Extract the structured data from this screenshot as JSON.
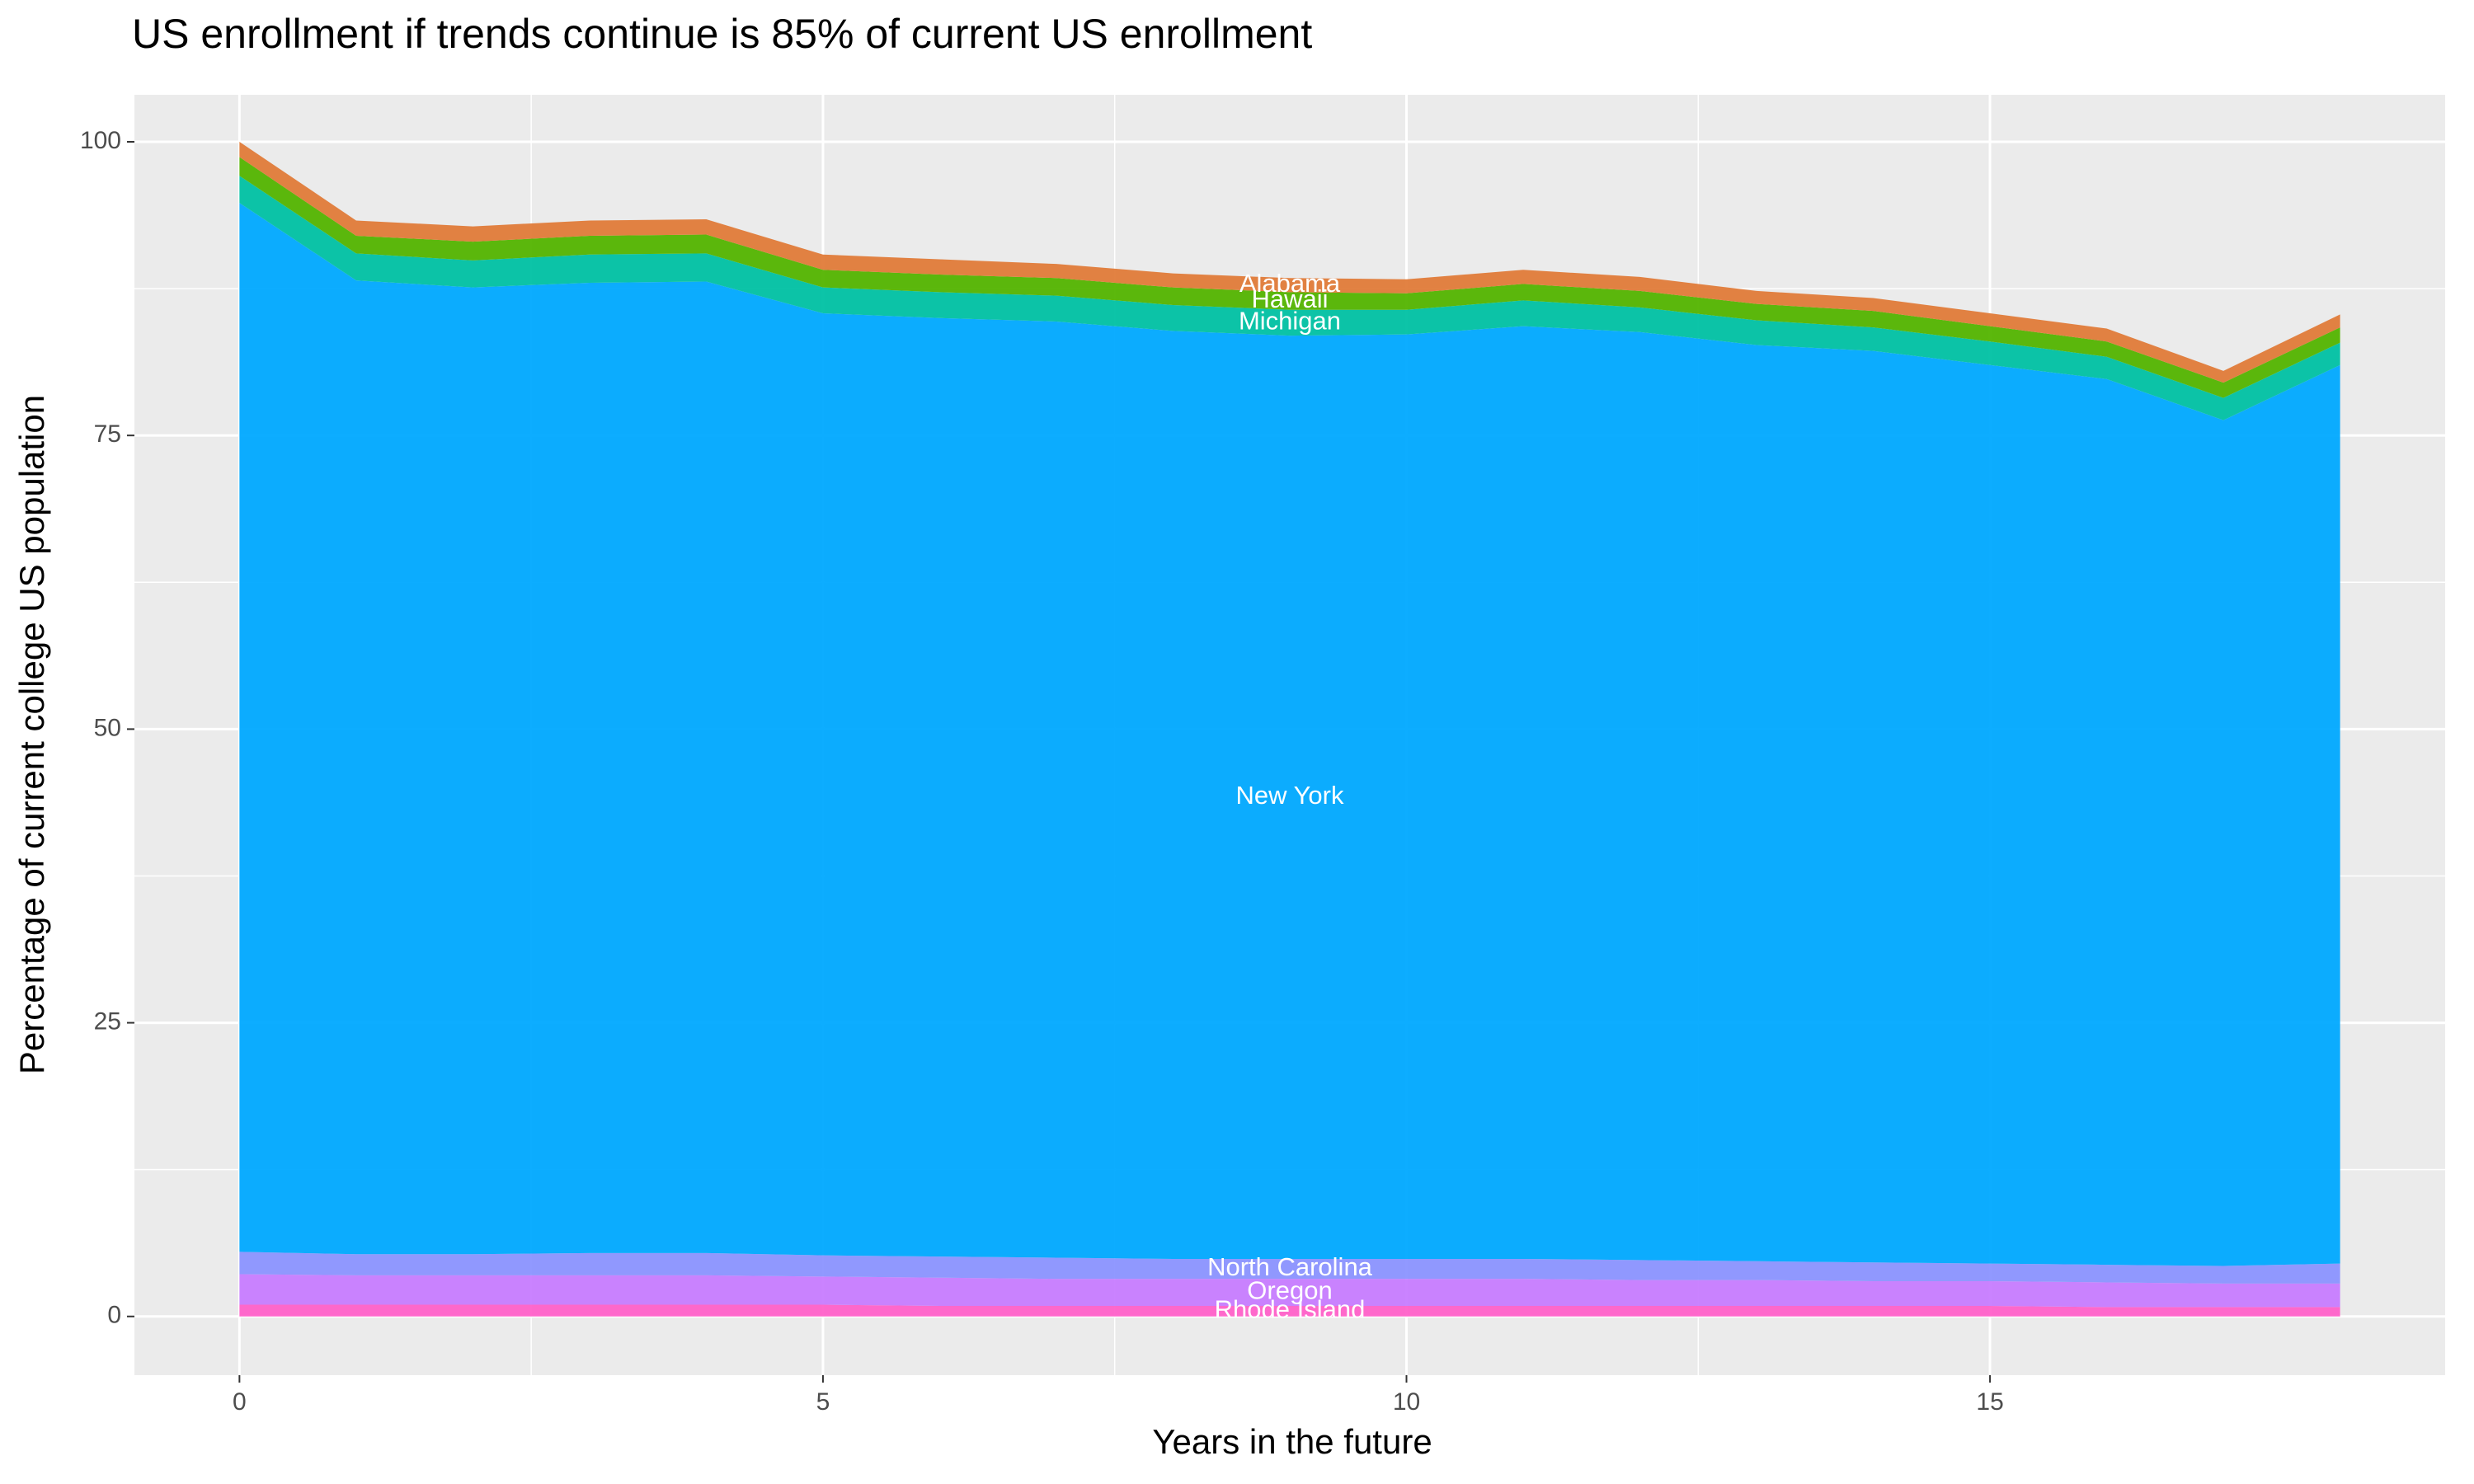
{
  "chart_data": {
    "type": "stacked-area",
    "title": "US enrollment if trends continue is 85% of current US enrollment",
    "x_label": "Years in the future",
    "y_label": "Percentage of current college US population",
    "x": [
      0,
      1,
      2,
      3,
      4,
      5,
      6,
      7,
      8,
      9,
      10,
      11,
      12,
      13,
      14,
      15,
      16,
      17,
      18
    ],
    "xlim": [
      -0.9,
      18.9
    ],
    "xticks": [
      0,
      5,
      10,
      15
    ],
    "ylim": [
      -5,
      104
    ],
    "yticks": [
      0,
      25,
      50,
      75,
      100
    ],
    "grid": true,
    "series": [
      {
        "name": "Rhode Island",
        "color": "#ff61c9",
        "values": [
          1.0,
          1.0,
          1.0,
          1.0,
          1.0,
          1.0,
          0.9,
          0.9,
          0.9,
          0.9,
          0.9,
          0.9,
          0.9,
          0.9,
          0.9,
          0.9,
          0.8,
          0.8,
          0.8
        ]
      },
      {
        "name": "Oregon",
        "color": "#c77cff",
        "values": [
          2.6,
          2.5,
          2.5,
          2.5,
          2.5,
          2.4,
          2.4,
          2.3,
          2.3,
          2.3,
          2.3,
          2.3,
          2.2,
          2.2,
          2.1,
          2.1,
          2.1,
          2.0,
          2.0
        ]
      },
      {
        "name": "North Carolina",
        "color": "#8b93ff",
        "values": [
          1.9,
          1.8,
          1.8,
          1.9,
          1.9,
          1.8,
          1.8,
          1.8,
          1.7,
          1.7,
          1.7,
          1.7,
          1.7,
          1.6,
          1.6,
          1.5,
          1.5,
          1.5,
          1.7
        ]
      },
      {
        "name": "New York",
        "color": "#00a9ff",
        "values": [
          89.3,
          82.9,
          82.3,
          82.6,
          82.7,
          80.2,
          79.9,
          79.7,
          79.0,
          78.6,
          78.7,
          79.4,
          79.0,
          78.0,
          77.6,
          76.5,
          75.4,
          72.0,
          76.5
        ]
      },
      {
        "name": "Michigan",
        "color": "#00c1a3",
        "values": [
          2.3,
          2.3,
          2.3,
          2.4,
          2.4,
          2.2,
          2.2,
          2.2,
          2.2,
          2.2,
          2.1,
          2.2,
          2.1,
          2.1,
          2.0,
          2.0,
          1.9,
          1.9,
          1.9
        ]
      },
      {
        "name": "Hawaii",
        "color": "#53b400",
        "values": [
          1.6,
          1.5,
          1.6,
          1.6,
          1.6,
          1.5,
          1.5,
          1.5,
          1.5,
          1.5,
          1.4,
          1.4,
          1.4,
          1.4,
          1.4,
          1.3,
          1.3,
          1.3,
          1.3
        ]
      },
      {
        "name": "Alabama",
        "color": "#e07b39",
        "values": [
          1.3,
          1.3,
          1.3,
          1.3,
          1.3,
          1.3,
          1.3,
          1.2,
          1.2,
          1.2,
          1.2,
          1.2,
          1.2,
          1.1,
          1.1,
          1.1,
          1.1,
          1.0,
          1.1
        ]
      }
    ]
  }
}
